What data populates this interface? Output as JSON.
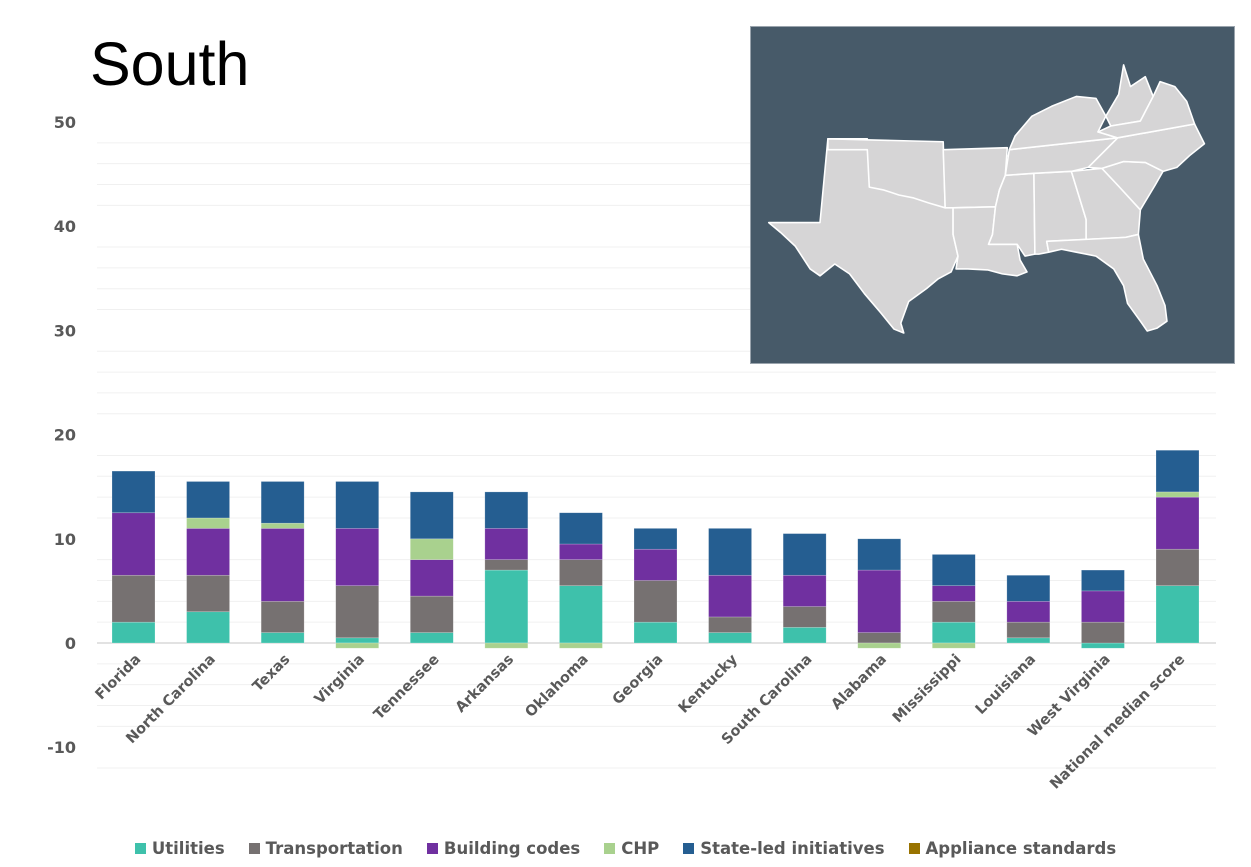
{
  "title": "South",
  "chart_data": {
    "type": "bar",
    "stacked": true,
    "title": "South",
    "xlabel": "",
    "ylabel": "",
    "ylim": [
      -10,
      50
    ],
    "yticks": [
      50,
      40,
      30,
      20,
      10,
      0,
      -10
    ],
    "ytick_labels": [
      "50",
      "40",
      "30",
      "20",
      "10",
      "0",
      "-10"
    ],
    "grid": true,
    "legend_position": "bottom",
    "categories": [
      "Florida",
      "North Carolina",
      "Texas",
      "Virginia",
      "Tennessee",
      "Arkansas",
      "Oklahoma",
      "Georgia",
      "Kentucky",
      "South Carolina",
      "Alabama",
      "Mississippi",
      "Louisiana",
      "West Virginia",
      "National median score"
    ],
    "series": [
      {
        "name": "Utilities",
        "color": "#3ec1ab",
        "values": [
          2,
          3,
          1,
          0.5,
          1,
          7,
          5.5,
          2,
          1,
          1.5,
          0,
          2,
          0.5,
          -0.5,
          5.5
        ]
      },
      {
        "name": "Transportation",
        "color": "#767171",
        "values": [
          4.5,
          3.5,
          3,
          5,
          3.5,
          1,
          2.5,
          4,
          1.5,
          2,
          1,
          2,
          1.5,
          2,
          3.5
        ]
      },
      {
        "name": "Building codes",
        "color": "#7030a0",
        "values": [
          6,
          4.5,
          7,
          5.5,
          3.5,
          3,
          1.5,
          3,
          4,
          3,
          6,
          1.5,
          2,
          3,
          5
        ]
      },
      {
        "name": "CHP",
        "color": "#a9d18e",
        "values": [
          0,
          1,
          0.5,
          -0.5,
          2,
          -0.5,
          -0.5,
          0,
          0,
          0,
          -0.5,
          -0.5,
          0,
          0,
          0.5
        ]
      },
      {
        "name": "State-led initiatives",
        "color": "#255e91",
        "values": [
          4,
          3.5,
          4,
          4.5,
          4.5,
          3.5,
          3,
          2,
          4.5,
          4,
          3,
          3,
          2.5,
          2,
          4
        ]
      },
      {
        "name": "Appliance standards",
        "color": "#997300",
        "values": [
          0,
          0,
          0,
          0,
          0,
          0,
          0,
          0,
          0,
          0,
          0,
          0,
          0,
          0,
          0
        ]
      }
    ]
  },
  "map": {
    "name": "South region map",
    "background": "#475a69",
    "land": "#d6d5d6",
    "border": "#ffffff"
  }
}
